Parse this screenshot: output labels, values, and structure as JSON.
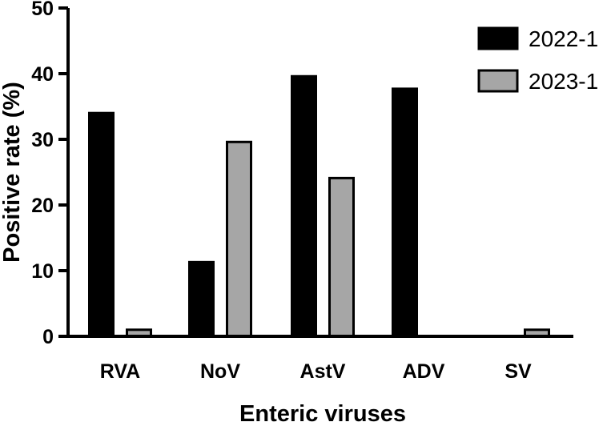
{
  "chart_data": {
    "type": "bar",
    "xlabel": "Enteric viruses",
    "ylabel": "Positive rate (%)",
    "ylim": [
      0,
      50
    ],
    "yticks": [
      0,
      10,
      20,
      30,
      40,
      50
    ],
    "categories": [
      "RVA",
      "NoV",
      "AstV",
      "ADV",
      "SV"
    ],
    "series": [
      {
        "name": "2022-1",
        "color": "#000000",
        "values": [
          34,
          11.3,
          39.6,
          37.7,
          0
        ]
      },
      {
        "name": "2023-1",
        "color": "#a6a6a6",
        "values": [
          1,
          29.6,
          24.1,
          0,
          1
        ]
      }
    ],
    "legend_position": "top-right",
    "grid": false
  }
}
